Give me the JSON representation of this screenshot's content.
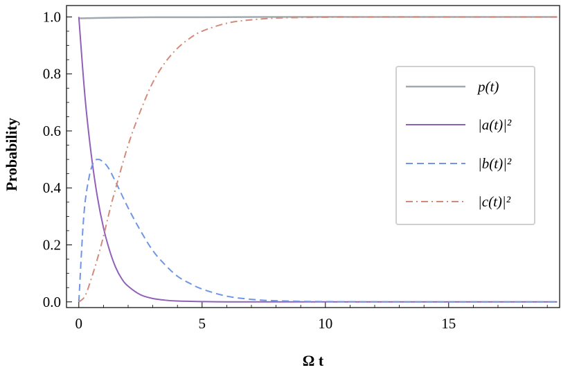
{
  "chart_data": {
    "type": "line",
    "title": "",
    "xlabel": "Ω t",
    "ylabel": "Probability",
    "xlim": [
      -0.5,
      19.5
    ],
    "ylim": [
      -0.02,
      1.04
    ],
    "x_ticks": [
      0,
      5,
      10,
      15
    ],
    "x_tick_labels": [
      "0",
      "5",
      "10",
      "15"
    ],
    "y_ticks": [
      0.0,
      0.2,
      0.4,
      0.6,
      0.8,
      1.0
    ],
    "y_tick_labels": [
      "0.0",
      "0.2",
      "0.4",
      "0.6",
      "0.8",
      "1.0"
    ],
    "grid": false,
    "legend_position": "center-right",
    "series": [
      {
        "name": "p(t)",
        "color": "#a0a8b0",
        "dash": "solid",
        "x": [
          0,
          0.5,
          1,
          2,
          3,
          5,
          8,
          12,
          16,
          19.4
        ],
        "y": [
          0.995,
          0.996,
          0.997,
          0.998,
          0.999,
          0.999,
          1.0,
          1.0,
          1.0,
          1.0
        ]
      },
      {
        "name": "|a(t)|²",
        "color": "#9060b8",
        "dash": "solid",
        "x": [
          0,
          0.25,
          0.5,
          0.75,
          1.0,
          1.25,
          1.5,
          1.75,
          2.0,
          2.5,
          3.0,
          3.5,
          4.0,
          5.0,
          6.0,
          8.0,
          10.0,
          15.0,
          19.4
        ],
        "y": [
          1.0,
          0.72,
          0.52,
          0.37,
          0.26,
          0.18,
          0.12,
          0.08,
          0.055,
          0.025,
          0.012,
          0.006,
          0.003,
          0.001,
          0.0,
          0.0,
          0.0,
          0.0,
          0.0
        ]
      },
      {
        "name": "|b(t)|²",
        "color": "#6f95e6",
        "dash": "dashed",
        "x": [
          0,
          0.2,
          0.4,
          0.6,
          0.8,
          1.0,
          1.2,
          1.5,
          2.0,
          2.5,
          3.0,
          3.5,
          4.0,
          4.5,
          5.0,
          6.0,
          7.0,
          8.0,
          10.0,
          15.0,
          19.4
        ],
        "y": [
          0.0,
          0.3,
          0.43,
          0.49,
          0.5,
          0.49,
          0.47,
          0.42,
          0.33,
          0.25,
          0.18,
          0.13,
          0.09,
          0.065,
          0.045,
          0.02,
          0.009,
          0.004,
          0.001,
          0.0,
          0.0
        ]
      },
      {
        "name": "|c(t)|²",
        "color": "#d48a78",
        "dash": "dashdot",
        "x": [
          0,
          0.25,
          0.5,
          0.75,
          1.0,
          1.25,
          1.5,
          2.0,
          2.5,
          3.0,
          3.5,
          4.0,
          4.5,
          5.0,
          6.0,
          7.0,
          8.0,
          9.0,
          10.0,
          12.0,
          15.0,
          19.4
        ],
        "y": [
          0.0,
          0.02,
          0.08,
          0.15,
          0.23,
          0.32,
          0.4,
          0.55,
          0.67,
          0.77,
          0.84,
          0.89,
          0.925,
          0.95,
          0.978,
          0.99,
          0.996,
          0.998,
          0.999,
          1.0,
          1.0,
          1.0
        ]
      }
    ],
    "legend": [
      {
        "label": "p(t)",
        "series": 0
      },
      {
        "label": "|a(t)|²",
        "series": 1
      },
      {
        "label": "|b(t)|²",
        "series": 2
      },
      {
        "label": "|c(t)|²",
        "series": 3
      }
    ]
  }
}
